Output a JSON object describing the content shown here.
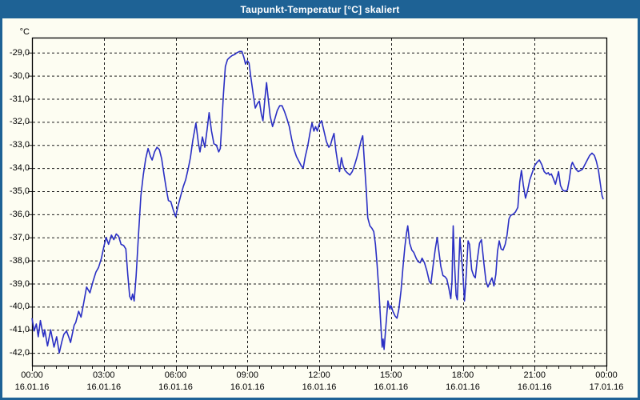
{
  "window": {
    "title": "Taupunkt-Temperatur [°C] skaliert"
  },
  "colors": {
    "titlebar_bg": "#1e6295",
    "titlebar_text": "#ffffff",
    "window_border": "#1e6295",
    "page_bg": "#fdfdf2",
    "line": "#2a2fc4",
    "grid": "#1a1a1a",
    "frame": "#000000",
    "label_text": "#000000"
  },
  "chart_data": {
    "type": "line",
    "title": "Taupunkt-Temperatur [°C] skaliert",
    "unit_label": "°C",
    "grid": "dashed",
    "legend": "none",
    "xlabel": "",
    "ylabel": "°C",
    "ylim": [
      -42.55,
      -28.35
    ],
    "xlim_hours": [
      0,
      24
    ],
    "y_ticks": [
      {
        "label": "-29,0",
        "value": -29
      },
      {
        "label": "-30,0",
        "value": -30
      },
      {
        "label": "-31,0",
        "value": -31
      },
      {
        "label": "-32,0",
        "value": -32
      },
      {
        "label": "-33,0",
        "value": -33
      },
      {
        "label": "-34,0",
        "value": -34
      },
      {
        "label": "-35,0",
        "value": -35
      },
      {
        "label": "-36,0",
        "value": -36
      },
      {
        "label": "-37,0",
        "value": -37
      },
      {
        "label": "-38,0",
        "value": -38
      },
      {
        "label": "-39,0",
        "value": -39
      },
      {
        "label": "-40,0",
        "value": -40
      },
      {
        "label": "-41,0",
        "value": -41
      },
      {
        "label": "-42,0",
        "value": -42
      }
    ],
    "x_ticks": [
      {
        "hour": 0,
        "time": "00:00",
        "date": "16.01.16"
      },
      {
        "hour": 3,
        "time": "03:00",
        "date": "16.01.16"
      },
      {
        "hour": 6,
        "time": "06:00",
        "date": "16.01.16"
      },
      {
        "hour": 9,
        "time": "09:00",
        "date": "16.01.16"
      },
      {
        "hour": 12,
        "time": "12:00",
        "date": "16.01.16"
      },
      {
        "hour": 15,
        "time": "15:00",
        "date": "16.01.16"
      },
      {
        "hour": 18,
        "time": "18:00",
        "date": "16.01.16"
      },
      {
        "hour": 21,
        "time": "21:00",
        "date": "16.01.16"
      },
      {
        "hour": 24,
        "time": "00:00",
        "date": "17.01.16"
      }
    ],
    "minor_tick_interval_hours": 0.5,
    "series": [
      {
        "name": "Taupunkt-Temperatur",
        "color": "#2a2fc4",
        "points": [
          [
            0.0,
            -40.5
          ],
          [
            0.09,
            -41.05
          ],
          [
            0.18,
            -40.75
          ],
          [
            0.26,
            -41.3
          ],
          [
            0.35,
            -40.6
          ],
          [
            0.42,
            -41.0
          ],
          [
            0.48,
            -41.3
          ],
          [
            0.53,
            -41.0
          ],
          [
            0.65,
            -41.7
          ],
          [
            0.78,
            -41.0
          ],
          [
            0.92,
            -41.75
          ],
          [
            1.03,
            -41.3
          ],
          [
            1.14,
            -42.0
          ],
          [
            1.25,
            -41.5
          ],
          [
            1.33,
            -41.2
          ],
          [
            1.44,
            -41.05
          ],
          [
            1.53,
            -41.3
          ],
          [
            1.61,
            -41.55
          ],
          [
            1.7,
            -41.1
          ],
          [
            1.76,
            -40.8
          ],
          [
            1.83,
            -40.68
          ],
          [
            1.95,
            -40.2
          ],
          [
            2.05,
            -40.45
          ],
          [
            2.15,
            -39.9
          ],
          [
            2.28,
            -39.15
          ],
          [
            2.42,
            -39.4
          ],
          [
            2.55,
            -38.9
          ],
          [
            2.67,
            -38.5
          ],
          [
            2.78,
            -38.3
          ],
          [
            2.9,
            -37.9
          ],
          [
            3.0,
            -37.4
          ],
          [
            3.1,
            -37.0
          ],
          [
            3.2,
            -37.3
          ],
          [
            3.32,
            -36.9
          ],
          [
            3.42,
            -37.1
          ],
          [
            3.52,
            -36.85
          ],
          [
            3.62,
            -36.95
          ],
          [
            3.72,
            -37.3
          ],
          [
            3.83,
            -37.35
          ],
          [
            3.92,
            -37.5
          ],
          [
            4.0,
            -38.6
          ],
          [
            4.08,
            -39.55
          ],
          [
            4.15,
            -39.7
          ],
          [
            4.2,
            -39.45
          ],
          [
            4.27,
            -39.75
          ],
          [
            4.35,
            -38.7
          ],
          [
            4.45,
            -36.9
          ],
          [
            4.55,
            -35.2
          ],
          [
            4.65,
            -34.3
          ],
          [
            4.75,
            -33.6
          ],
          [
            4.85,
            -33.15
          ],
          [
            4.95,
            -33.5
          ],
          [
            5.02,
            -33.65
          ],
          [
            5.12,
            -33.3
          ],
          [
            5.22,
            -33.1
          ],
          [
            5.32,
            -33.2
          ],
          [
            5.42,
            -33.6
          ],
          [
            5.52,
            -34.3
          ],
          [
            5.62,
            -34.95
          ],
          [
            5.7,
            -35.4
          ],
          [
            5.8,
            -35.45
          ],
          [
            5.9,
            -35.8
          ],
          [
            6.0,
            -36.1
          ],
          [
            6.1,
            -35.65
          ],
          [
            6.2,
            -35.25
          ],
          [
            6.32,
            -34.8
          ],
          [
            6.42,
            -34.5
          ],
          [
            6.52,
            -34.05
          ],
          [
            6.62,
            -33.55
          ],
          [
            6.72,
            -32.8
          ],
          [
            6.85,
            -32.05
          ],
          [
            6.95,
            -32.9
          ],
          [
            7.02,
            -33.3
          ],
          [
            7.12,
            -32.65
          ],
          [
            7.22,
            -33.1
          ],
          [
            7.32,
            -32.3
          ],
          [
            7.4,
            -31.6
          ],
          [
            7.5,
            -32.4
          ],
          [
            7.6,
            -32.95
          ],
          [
            7.7,
            -33.0
          ],
          [
            7.8,
            -33.3
          ],
          [
            7.87,
            -33.15
          ],
          [
            7.93,
            -32.1
          ],
          [
            8.0,
            -30.8
          ],
          [
            8.08,
            -29.6
          ],
          [
            8.17,
            -29.3
          ],
          [
            8.27,
            -29.2
          ],
          [
            8.37,
            -29.12
          ],
          [
            8.47,
            -29.08
          ],
          [
            8.57,
            -29.0
          ],
          [
            8.67,
            -28.95
          ],
          [
            8.77,
            -28.95
          ],
          [
            8.85,
            -29.2
          ],
          [
            8.92,
            -29.5
          ],
          [
            9.0,
            -29.35
          ],
          [
            9.07,
            -29.45
          ],
          [
            9.15,
            -30.1
          ],
          [
            9.25,
            -30.85
          ],
          [
            9.33,
            -31.4
          ],
          [
            9.42,
            -31.2
          ],
          [
            9.5,
            -31.1
          ],
          [
            9.58,
            -31.65
          ],
          [
            9.65,
            -31.95
          ],
          [
            9.73,
            -31.0
          ],
          [
            9.8,
            -30.3
          ],
          [
            9.88,
            -31.1
          ],
          [
            9.95,
            -31.75
          ],
          [
            10.05,
            -32.2
          ],
          [
            10.15,
            -31.85
          ],
          [
            10.25,
            -31.5
          ],
          [
            10.35,
            -31.3
          ],
          [
            10.45,
            -31.3
          ],
          [
            10.55,
            -31.55
          ],
          [
            10.65,
            -31.85
          ],
          [
            10.75,
            -32.2
          ],
          [
            10.85,
            -32.75
          ],
          [
            10.95,
            -33.2
          ],
          [
            11.05,
            -33.5
          ],
          [
            11.15,
            -33.7
          ],
          [
            11.25,
            -33.9
          ],
          [
            11.33,
            -34.0
          ],
          [
            11.42,
            -33.5
          ],
          [
            11.52,
            -33.05
          ],
          [
            11.62,
            -32.45
          ],
          [
            11.7,
            -32.05
          ],
          [
            11.78,
            -32.4
          ],
          [
            11.85,
            -32.2
          ],
          [
            11.92,
            -32.4
          ],
          [
            12.0,
            -32.1
          ],
          [
            12.1,
            -31.95
          ],
          [
            12.2,
            -32.4
          ],
          [
            12.3,
            -32.85
          ],
          [
            12.4,
            -33.1
          ],
          [
            12.47,
            -33.0
          ],
          [
            12.55,
            -32.7
          ],
          [
            12.62,
            -32.5
          ],
          [
            12.7,
            -33.25
          ],
          [
            12.78,
            -33.8
          ],
          [
            12.85,
            -34.15
          ],
          [
            12.93,
            -33.55
          ],
          [
            13.0,
            -33.9
          ],
          [
            13.08,
            -34.1
          ],
          [
            13.17,
            -34.2
          ],
          [
            13.28,
            -34.3
          ],
          [
            13.38,
            -34.15
          ],
          [
            13.47,
            -33.9
          ],
          [
            13.57,
            -33.55
          ],
          [
            13.67,
            -33.15
          ],
          [
            13.75,
            -32.8
          ],
          [
            13.82,
            -32.6
          ],
          [
            13.9,
            -33.9
          ],
          [
            13.97,
            -35.0
          ],
          [
            14.03,
            -36.15
          ],
          [
            14.12,
            -36.5
          ],
          [
            14.2,
            -36.6
          ],
          [
            14.28,
            -36.75
          ],
          [
            14.35,
            -37.3
          ],
          [
            14.42,
            -38.2
          ],
          [
            14.5,
            -39.4
          ],
          [
            14.57,
            -40.7
          ],
          [
            14.63,
            -41.75
          ],
          [
            14.67,
            -41.4
          ],
          [
            14.71,
            -41.85
          ],
          [
            14.78,
            -40.9
          ],
          [
            14.87,
            -39.75
          ],
          [
            14.95,
            -40.1
          ],
          [
            15.0,
            -39.95
          ],
          [
            15.08,
            -40.2
          ],
          [
            15.17,
            -40.4
          ],
          [
            15.25,
            -40.5
          ],
          [
            15.33,
            -40.1
          ],
          [
            15.42,
            -39.3
          ],
          [
            15.5,
            -38.3
          ],
          [
            15.58,
            -37.4
          ],
          [
            15.65,
            -36.8
          ],
          [
            15.7,
            -36.5
          ],
          [
            15.78,
            -37.25
          ],
          [
            15.87,
            -37.55
          ],
          [
            15.95,
            -37.65
          ],
          [
            16.05,
            -37.9
          ],
          [
            16.13,
            -38.05
          ],
          [
            16.22,
            -38.1
          ],
          [
            16.3,
            -37.9
          ],
          [
            16.4,
            -38.1
          ],
          [
            16.5,
            -38.45
          ],
          [
            16.6,
            -38.9
          ],
          [
            16.67,
            -39.0
          ],
          [
            16.75,
            -38.3
          ],
          [
            16.85,
            -37.5
          ],
          [
            16.93,
            -37.0
          ],
          [
            17.0,
            -37.6
          ],
          [
            17.08,
            -38.25
          ],
          [
            17.17,
            -38.65
          ],
          [
            17.25,
            -38.7
          ],
          [
            17.33,
            -38.8
          ],
          [
            17.42,
            -39.2
          ],
          [
            17.5,
            -39.65
          ],
          [
            17.55,
            -38.9
          ],
          [
            17.6,
            -36.5
          ],
          [
            17.65,
            -38.0
          ],
          [
            17.72,
            -39.5
          ],
          [
            17.77,
            -39.7
          ],
          [
            17.83,
            -38.3
          ],
          [
            17.88,
            -37.0
          ],
          [
            17.95,
            -37.9
          ],
          [
            18.0,
            -38.5
          ],
          [
            18.07,
            -39.75
          ],
          [
            18.15,
            -38.5
          ],
          [
            18.22,
            -37.15
          ],
          [
            18.28,
            -37.3
          ],
          [
            18.37,
            -38.4
          ],
          [
            18.45,
            -38.65
          ],
          [
            18.52,
            -38.75
          ],
          [
            18.6,
            -38.0
          ],
          [
            18.7,
            -37.25
          ],
          [
            18.78,
            -37.1
          ],
          [
            18.88,
            -38.1
          ],
          [
            18.97,
            -38.9
          ],
          [
            19.05,
            -39.15
          ],
          [
            19.13,
            -38.95
          ],
          [
            19.22,
            -38.75
          ],
          [
            19.3,
            -39.1
          ],
          [
            19.38,
            -38.6
          ],
          [
            19.45,
            -37.6
          ],
          [
            19.52,
            -37.15
          ],
          [
            19.6,
            -37.5
          ],
          [
            19.68,
            -37.55
          ],
          [
            19.77,
            -37.3
          ],
          [
            19.85,
            -36.9
          ],
          [
            19.93,
            -36.2
          ],
          [
            20.0,
            -36.05
          ],
          [
            20.1,
            -36.0
          ],
          [
            20.2,
            -35.9
          ],
          [
            20.3,
            -35.7
          ],
          [
            20.38,
            -34.6
          ],
          [
            20.45,
            -34.1
          ],
          [
            20.53,
            -34.75
          ],
          [
            20.62,
            -35.3
          ],
          [
            20.7,
            -35.0
          ],
          [
            20.8,
            -34.5
          ],
          [
            20.9,
            -34.2
          ],
          [
            21.0,
            -33.9
          ],
          [
            21.1,
            -33.75
          ],
          [
            21.2,
            -33.65
          ],
          [
            21.3,
            -33.85
          ],
          [
            21.4,
            -34.15
          ],
          [
            21.5,
            -34.25
          ],
          [
            21.57,
            -34.2
          ],
          [
            21.63,
            -34.3
          ],
          [
            21.7,
            -34.25
          ],
          [
            21.78,
            -34.45
          ],
          [
            21.87,
            -34.7
          ],
          [
            21.95,
            -34.35
          ],
          [
            22.0,
            -34.15
          ],
          [
            22.08,
            -34.75
          ],
          [
            22.17,
            -34.95
          ],
          [
            22.27,
            -35.0
          ],
          [
            22.37,
            -34.95
          ],
          [
            22.45,
            -34.5
          ],
          [
            22.53,
            -33.9
          ],
          [
            22.58,
            -33.75
          ],
          [
            22.65,
            -33.9
          ],
          [
            22.73,
            -34.05
          ],
          [
            22.82,
            -34.15
          ],
          [
            22.92,
            -34.1
          ],
          [
            23.0,
            -34.05
          ],
          [
            23.1,
            -33.85
          ],
          [
            23.2,
            -33.65
          ],
          [
            23.3,
            -33.45
          ],
          [
            23.4,
            -33.35
          ],
          [
            23.5,
            -33.45
          ],
          [
            23.58,
            -33.7
          ],
          [
            23.67,
            -34.1
          ],
          [
            23.75,
            -34.7
          ],
          [
            23.82,
            -35.2
          ],
          [
            23.87,
            -35.35
          ]
        ]
      }
    ]
  }
}
